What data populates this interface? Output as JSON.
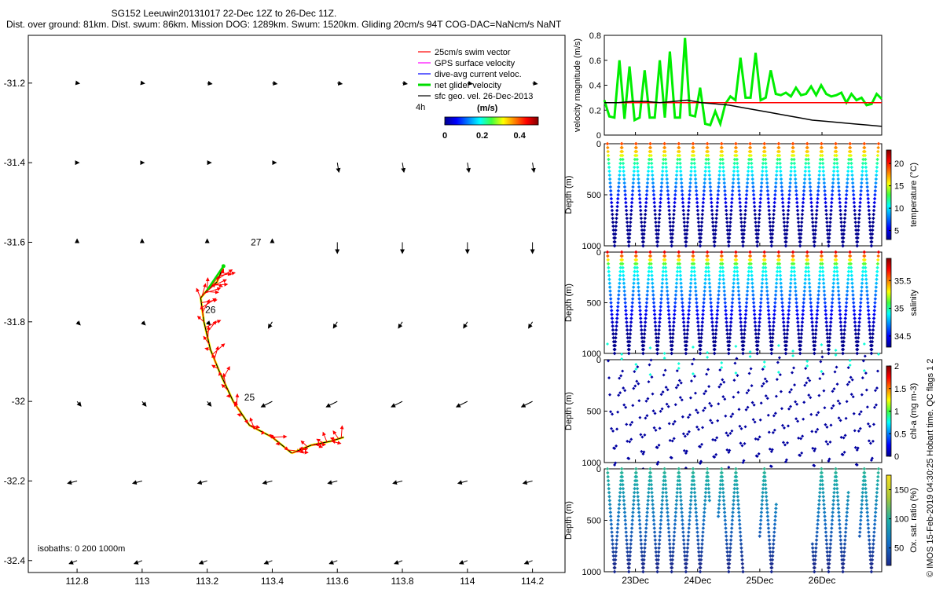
{
  "title_line1": "SG152 Leeuwin20131017 22-Dec 12Z to 26-Dec 11Z.",
  "title_line2": "Dist. over ground: 81km. Dist. swum: 86km. Mission DOG: 1289km. Swum: 1520km. Gliding 20cm/s 94T COG-DAC=NaNcm/s NaNT",
  "credit": "© IMOS 15-Feb-2019 04:30:25 Hobart time. QC flags 1  2",
  "chart_data": [
    {
      "type": "scatter",
      "name": "map",
      "xlim": [
        112.65,
        114.3
      ],
      "ylim": [
        -32.43,
        -31.08
      ],
      "xticks": [
        "112.8",
        "113",
        "113.2",
        "113.4",
        "113.6",
        "113.8",
        "114",
        "114.2"
      ],
      "xtick_vals": [
        112.8,
        113,
        113.2,
        113.4,
        113.6,
        113.8,
        114,
        114.2
      ],
      "yticks": [
        "-31.2",
        "-31.4",
        "-31.6",
        "-31.8",
        "-32",
        "-32.2",
        "-32.4"
      ],
      "ytick_vals": [
        -31.2,
        -31.4,
        -31.6,
        -31.8,
        -32,
        -32.2,
        -32.4
      ],
      "legend": [
        {
          "label": "25cm/s swim vector",
          "color": "#ff0000"
        },
        {
          "label": "GPS surface velocity",
          "color": "#ff00ff"
        },
        {
          "label": "dive-avg current veloc.",
          "color": "#0000ff"
        },
        {
          "label": "net glider velocity",
          "color": "#00dd00"
        },
        {
          "label": "sfc geo. vel. 26-Dec-2013",
          "color": "#000000"
        }
      ],
      "scale_label": "4h",
      "colorbar": {
        "label": "(m/s)",
        "ticks": [
          "0",
          "0.2",
          "0.4"
        ],
        "range": [
          0,
          0.5
        ]
      },
      "isobaths_label": "isobaths: 0   200   1000m",
      "day_labels": [
        {
          "text": "25",
          "lon": 113.33,
          "lat": -31.99
        },
        {
          "text": "26",
          "lon": 113.21,
          "lat": -31.77
        },
        {
          "text": "27",
          "lon": 113.35,
          "lat": -31.6
        }
      ],
      "track": [
        [
          113.46,
          -32.13
        ],
        [
          113.4,
          -32.09
        ],
        [
          113.33,
          -32.06
        ],
        [
          113.28,
          -32.0
        ],
        [
          113.24,
          -31.93
        ],
        [
          113.21,
          -31.87
        ],
        [
          113.19,
          -31.8
        ],
        [
          113.18,
          -31.74
        ],
        [
          113.2,
          -31.72
        ],
        [
          113.23,
          -31.7
        ],
        [
          113.25,
          -31.66
        ]
      ],
      "track_east": [
        [
          113.46,
          -32.13
        ],
        [
          113.52,
          -32.11
        ],
        [
          113.58,
          -32.1
        ],
        [
          113.62,
          -32.09
        ]
      ],
      "geo_grid_lons": [
        112.8,
        113.0,
        113.2,
        113.4,
        113.6,
        113.8,
        114.0,
        114.2
      ],
      "geo_grid_lats": [
        -31.2,
        -31.4,
        -31.6,
        -31.8,
        -32.0,
        -32.2,
        -32.4
      ]
    },
    {
      "type": "line",
      "name": "velocity",
      "ylabel": "velocity magnitude (m/s)",
      "ylim": [
        0,
        0.8
      ],
      "yticks": [
        "0",
        "0.2",
        "0.4",
        "0.6",
        "0.8"
      ],
      "series": [
        {
          "color": "#00ee00",
          "values": [
            0.28,
            0.15,
            0.14,
            0.6,
            0.13,
            0.55,
            0.12,
            0.14,
            0.52,
            0.14,
            0.14,
            0.6,
            0.14,
            0.67,
            0.14,
            0.14,
            0.78,
            0.16,
            0.15,
            0.38,
            0.09,
            0.08,
            0.19,
            0.09,
            0.25,
            0.31,
            0.28,
            0.62,
            0.3,
            0.3,
            0.66,
            0.28,
            0.3,
            0.52,
            0.33,
            0.32,
            0.34,
            0.31,
            0.38,
            0.32,
            0.33,
            0.39,
            0.32,
            0.4,
            0.33,
            0.31,
            0.32,
            0.34,
            0.26,
            0.33,
            0.28,
            0.3,
            0.24,
            0.25,
            0.33,
            0.29
          ]
        },
        {
          "color": "#ff0000",
          "values": [
            0.26,
            0.26
          ]
        },
        {
          "color": "#000000",
          "values": [
            0.26,
            0.26,
            0.27,
            0.27,
            0.26,
            0.27,
            0.28,
            0.26,
            0.25,
            0.24,
            0.22,
            0.2,
            0.18,
            0.16,
            0.14,
            0.12,
            0.11,
            0.1,
            0.09,
            0.08,
            0.07
          ]
        }
      ]
    },
    {
      "type": "scatter",
      "name": "temperature",
      "ylabel": "Depth (m)",
      "cblabel": "temperature (°C)",
      "cbticks": [
        "5",
        "10",
        "15",
        "20"
      ],
      "cbrange": [
        3,
        23
      ],
      "ymax": 1000,
      "maxdepth": 1000
    },
    {
      "type": "scatter",
      "name": "salinity",
      "ylabel": "Depth (m)",
      "cblabel": "salinity",
      "cbticks": [
        "34.5",
        "35",
        "35.5"
      ],
      "cbrange": [
        34.3,
        35.9
      ],
      "ymax": 1000,
      "maxdepth": 1000
    },
    {
      "type": "scatter",
      "name": "chla",
      "ylabel": "Depth (m)",
      "cblabel": "chl-a (mg m-3)",
      "cbticks": [
        "0",
        "0.5",
        "1",
        "1.5",
        "2"
      ],
      "cbrange": [
        0,
        2
      ],
      "ymax": 1000,
      "maxdepth": 1000
    },
    {
      "type": "scatter",
      "name": "oxygen",
      "ylabel": "Depth (m)",
      "cblabel": "Ox. sat. ratio (%)",
      "cbticks": [
        "50",
        "100",
        "150"
      ],
      "cbrange": [
        20,
        175
      ],
      "ymax": 1000,
      "maxdepth": 1000
    },
    {
      "type": "axis",
      "name": "time",
      "xticks": [
        "23Dec",
        "24Dec",
        "25Dec",
        "26Dec"
      ],
      "xlim": [
        22.5,
        26.96
      ]
    }
  ]
}
